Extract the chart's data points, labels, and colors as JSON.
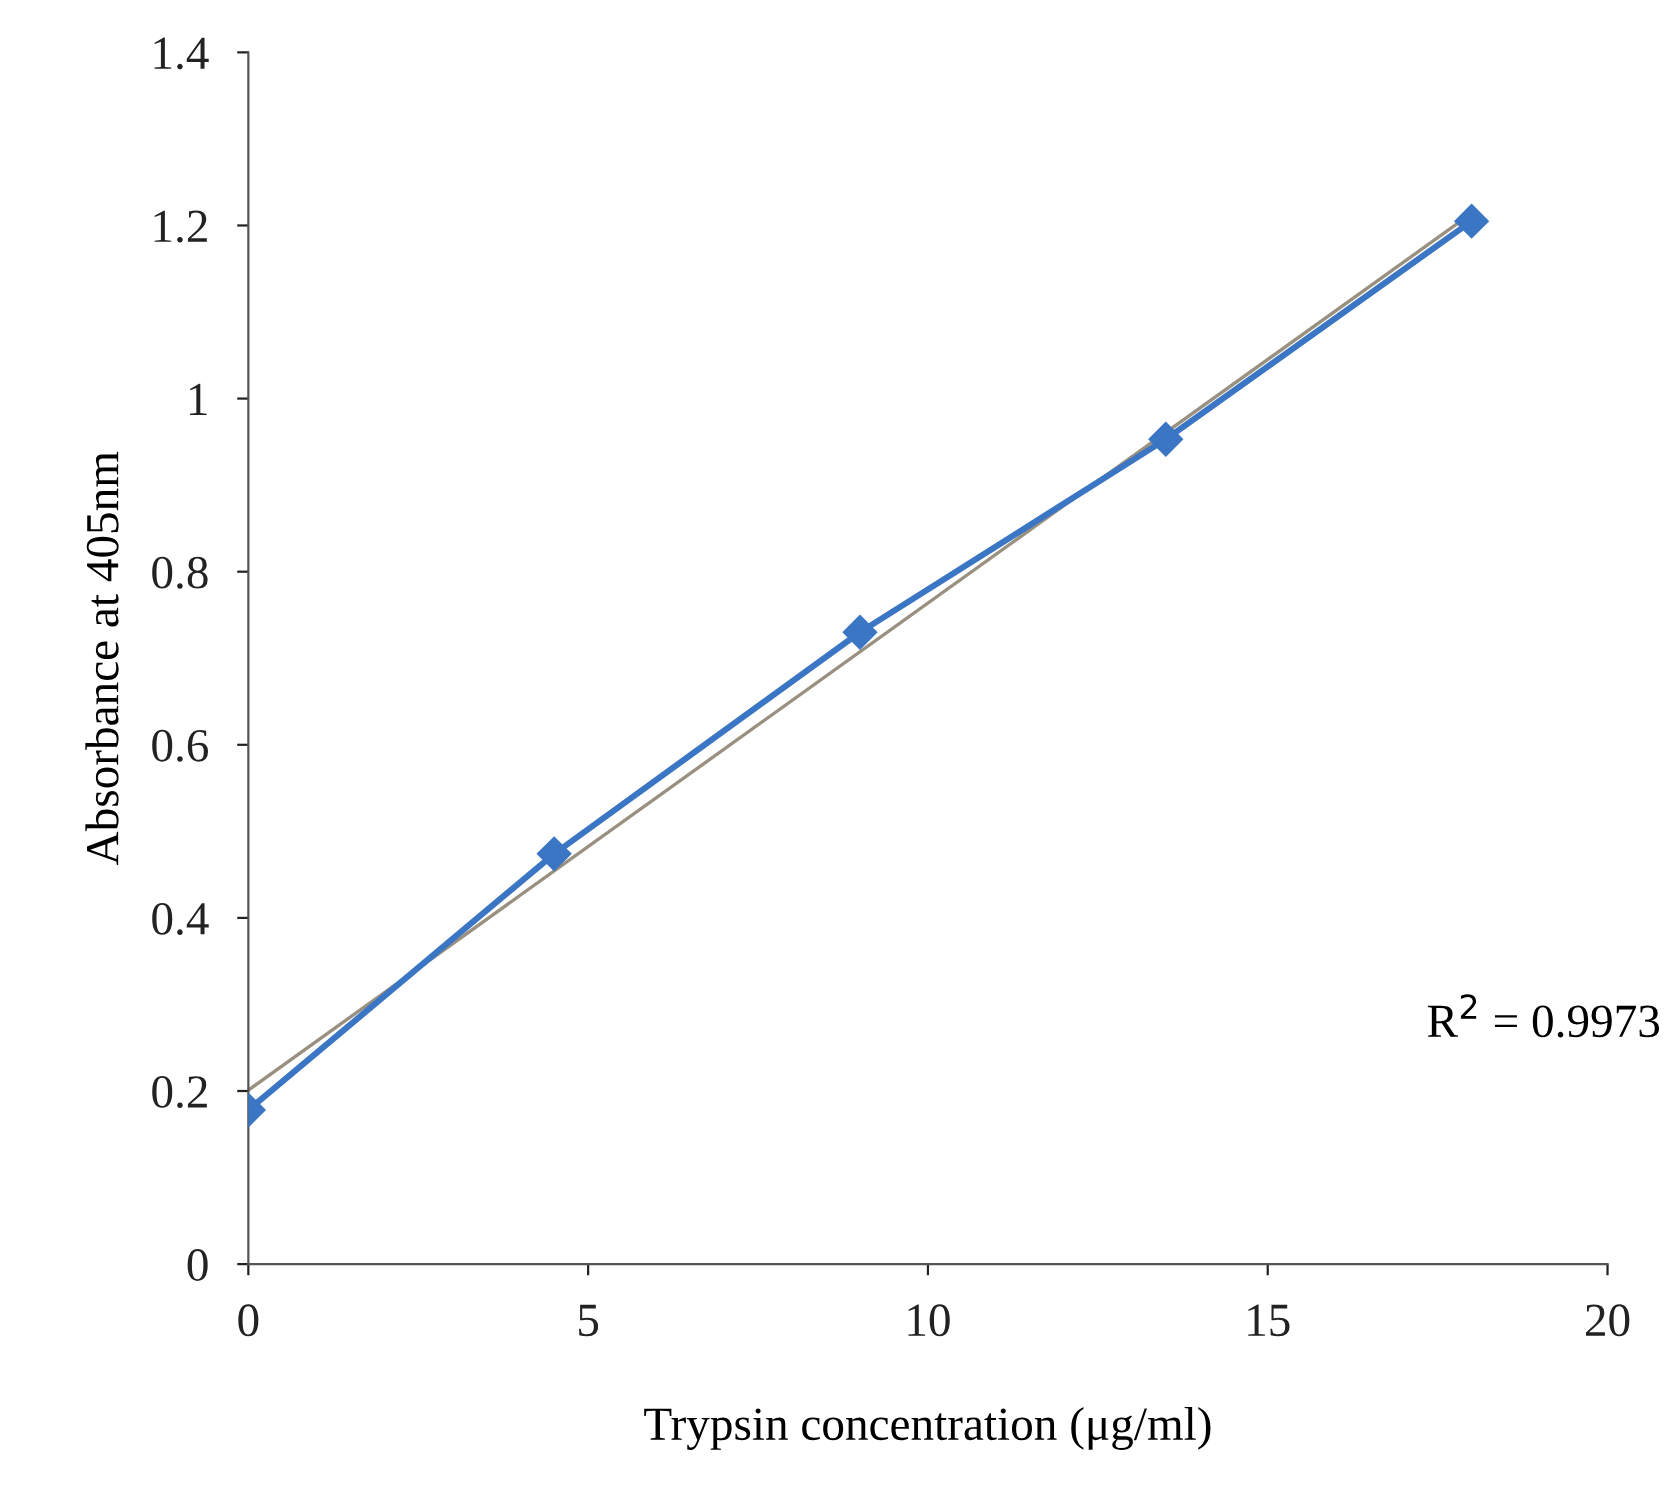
{
  "chart_data": {
    "type": "line",
    "xlabel": "Trypsin concentration (μg/ml)",
    "ylabel": "Absorbance at 405nm",
    "series": [
      {
        "color": "#3a76c4",
        "x": [
          0,
          4.5,
          9,
          13.5,
          18
        ],
        "values": [
          0.178,
          0.474,
          0.73,
          0.953,
          1.205
        ],
        "marker": "diamond"
      },
      {
        "color": "#9a9080",
        "x": [
          0,
          18
        ],
        "values": [
          0.201,
          1.214
        ],
        "marker": "none"
      }
    ],
    "xlim": [
      0,
      20
    ],
    "xticks": [
      0,
      5,
      10,
      15,
      20
    ],
    "ylim": [
      0,
      1.4
    ],
    "yticks": [
      0,
      0.2,
      0.4,
      0.6,
      0.8,
      1,
      1.2,
      1.4
    ],
    "annotations": [
      "R$^{2}$ = 0.9973"
    ],
    "grid": false,
    "legend": false
  }
}
